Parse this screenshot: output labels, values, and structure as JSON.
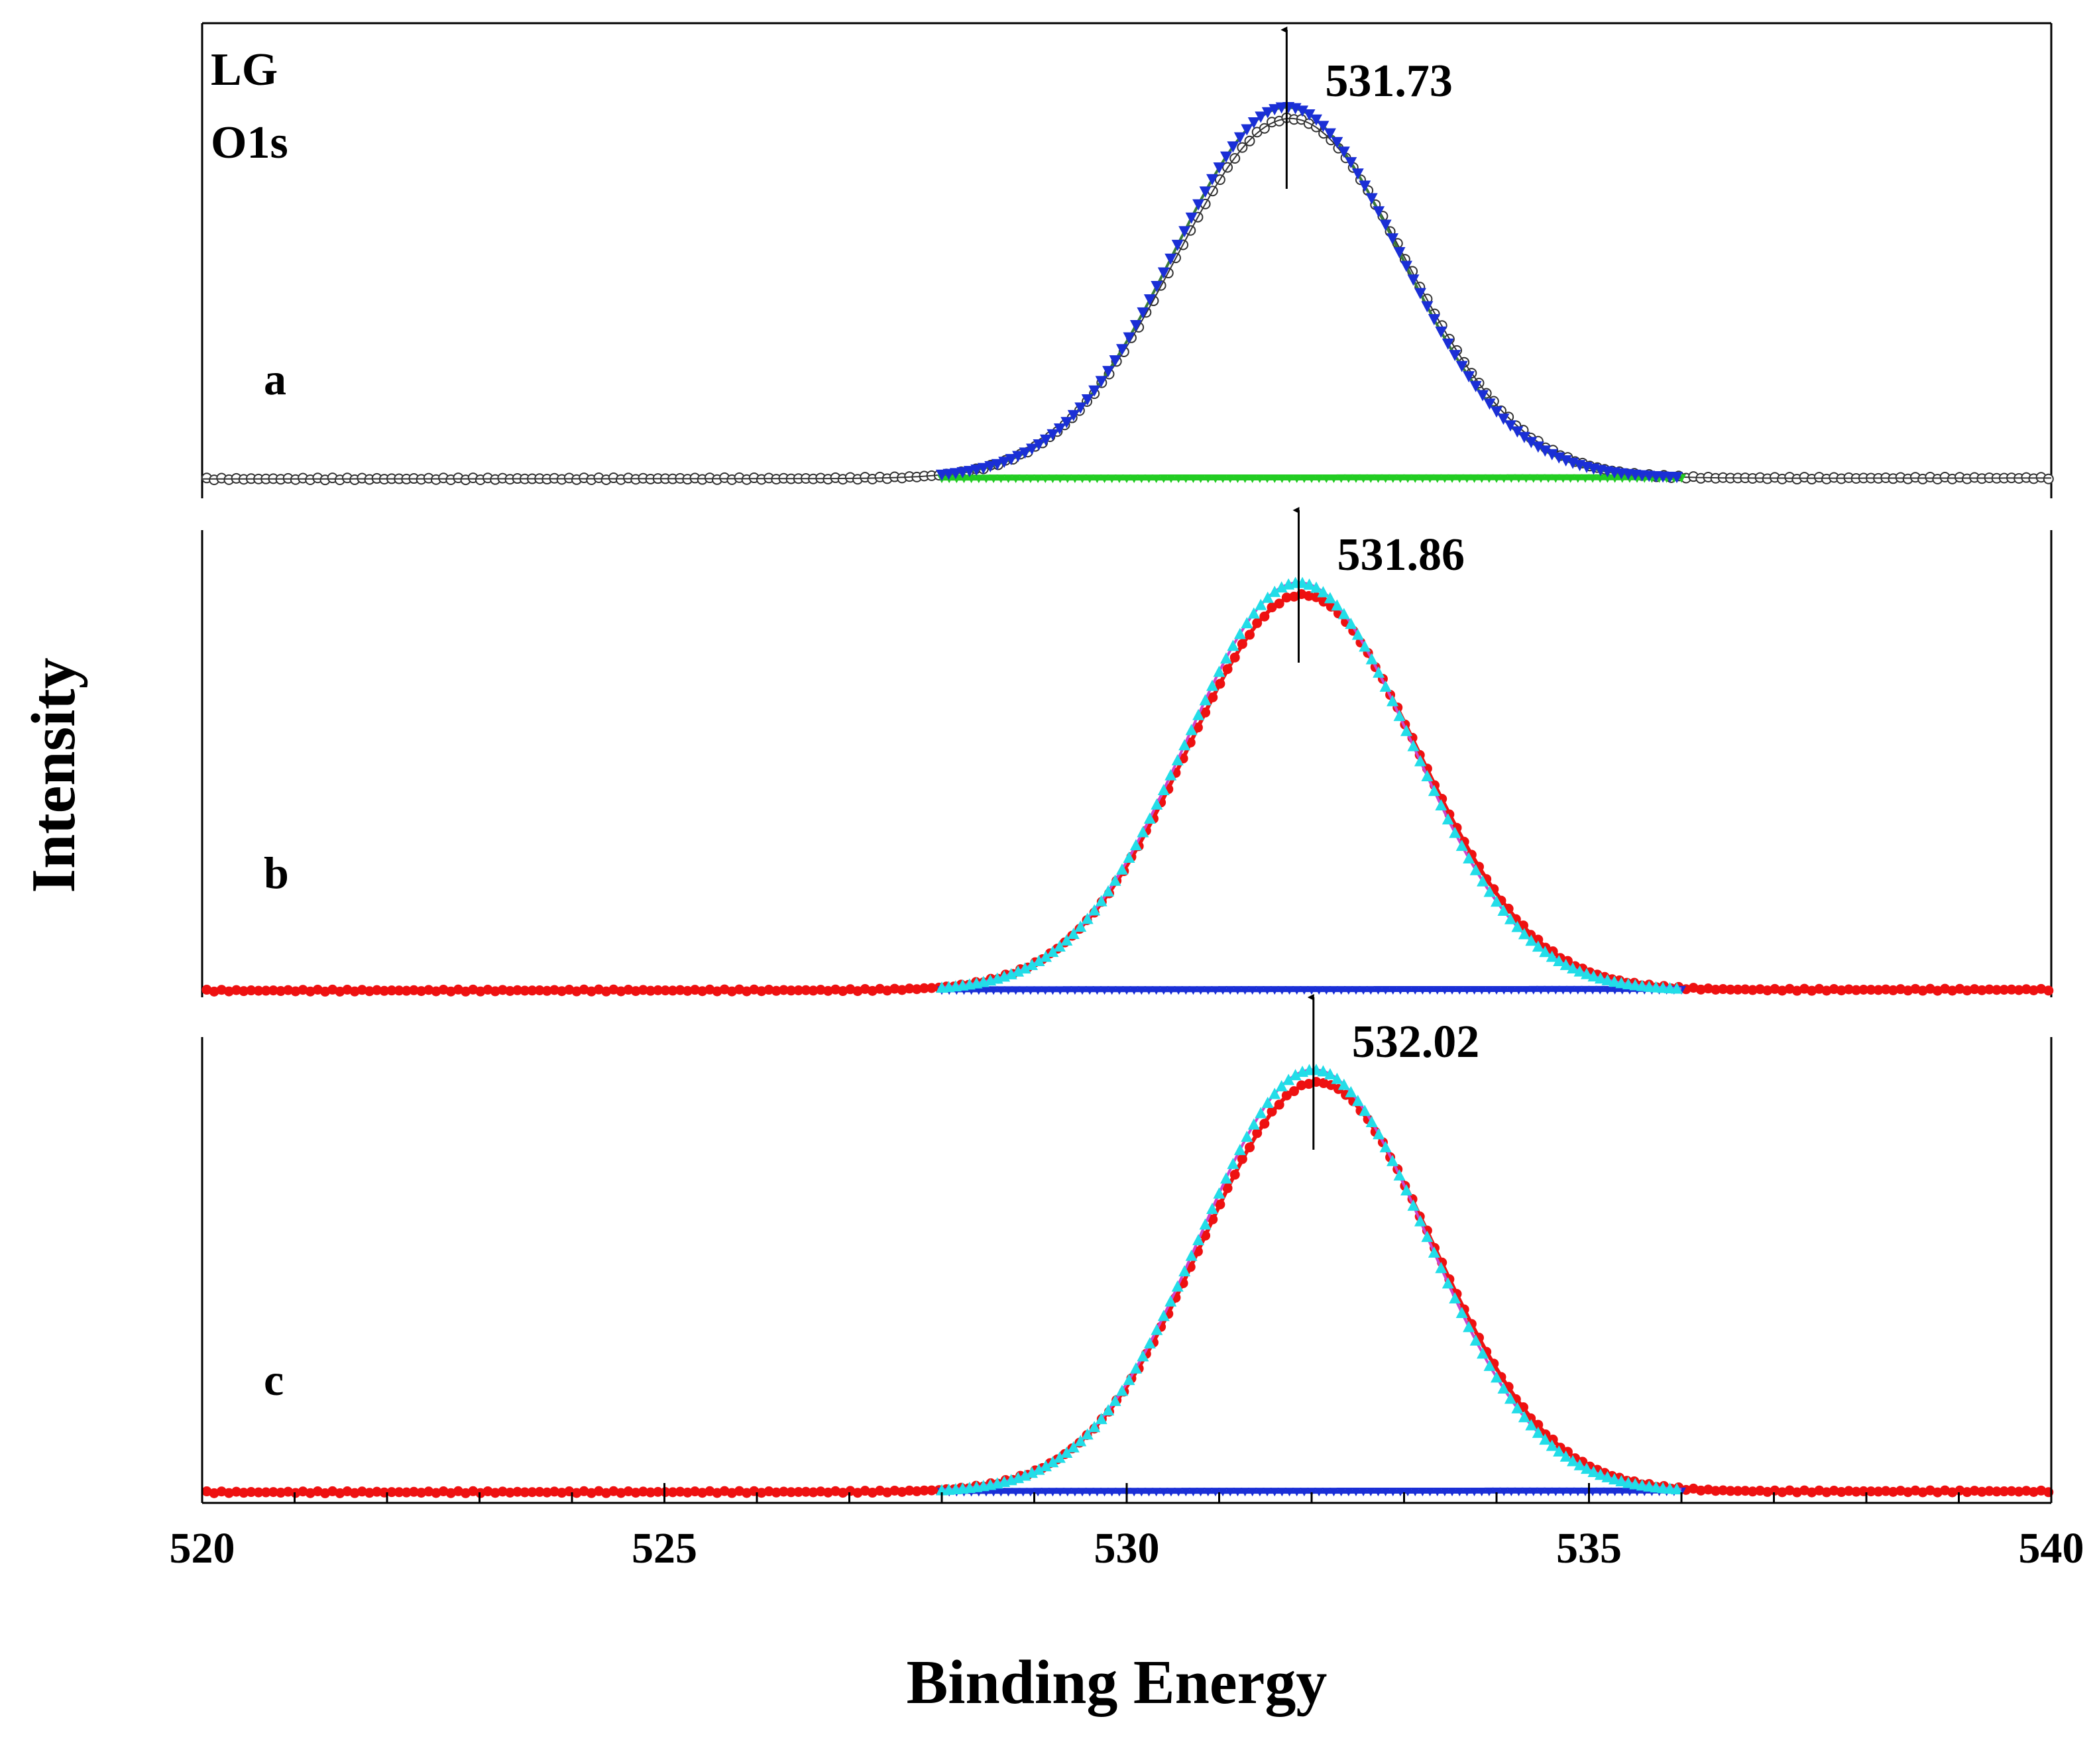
{
  "chart_data": {
    "type": "line",
    "title": "",
    "xlabel": "Binding Energy",
    "ylabel": "Intensity",
    "xlim": [
      520,
      540
    ],
    "xticks": [
      520,
      525,
      530,
      535,
      540
    ],
    "x_tick_labels": [
      "520",
      "525",
      "530",
      "535",
      "540"
    ],
    "yticks_shown": false,
    "panel_label_top": "LG",
    "panel_label_top2": "O1s",
    "panels": [
      {
        "id": "a",
        "label": "a",
        "peak_label": "531.73",
        "peak_position": 531.73,
        "baseline_start": 0.05,
        "baseline_end": 0.08,
        "peak_height": 1.0,
        "sigma": 1.25,
        "fit_range": [
          528,
          536
        ],
        "colors": {
          "raw": "#333333",
          "envelope": "#1a2fd6",
          "component": "#3a7a3a",
          "background": "#22cc22"
        },
        "series": [
          {
            "name": "raw data",
            "style": "open circles"
          },
          {
            "name": "fitted envelope",
            "style": "blue triangles"
          },
          {
            "name": "component",
            "style": "line"
          },
          {
            "name": "background",
            "style": "line"
          }
        ]
      },
      {
        "id": "b",
        "label": "b",
        "peak_label": "531.86",
        "peak_position": 531.86,
        "baseline_start": 0.0,
        "baseline_end": 0.03,
        "peak_height": 1.0,
        "sigma": 1.25,
        "fit_range": [
          528,
          536
        ],
        "colors": {
          "raw": "#ee1111",
          "envelope": "#22dde8",
          "component": "#cc44cc",
          "background": "#1a2fd6"
        },
        "series": [
          {
            "name": "raw data",
            "style": "red filled circles"
          },
          {
            "name": "fitted envelope",
            "style": "cyan triangles"
          },
          {
            "name": "component",
            "style": "line"
          },
          {
            "name": "background",
            "style": "blue triangles"
          }
        ]
      },
      {
        "id": "c",
        "label": "c",
        "peak_label": "532.02",
        "peak_position": 532.02,
        "baseline_start": 0.0,
        "baseline_end": 0.03,
        "peak_height": 1.0,
        "sigma": 1.25,
        "fit_range": [
          528,
          536
        ],
        "colors": {
          "raw": "#ee1111",
          "envelope": "#22dde8",
          "component": "#cc44cc",
          "background": "#1a2fd6"
        },
        "series": [
          {
            "name": "raw data",
            "style": "red filled circles"
          },
          {
            "name": "fitted envelope",
            "style": "cyan triangles"
          },
          {
            "name": "component",
            "style": "line"
          },
          {
            "name": "background",
            "style": "blue triangles"
          }
        ]
      }
    ]
  }
}
